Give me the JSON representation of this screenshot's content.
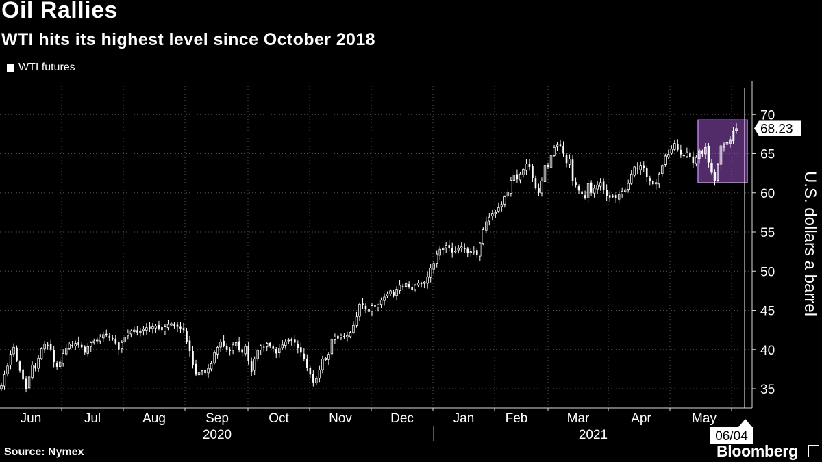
{
  "header": {
    "title": "Oil Rallies",
    "subtitle": "WTI hits its highest level since October 2018"
  },
  "footer": {
    "source": "Source: Nymex",
    "brand": "Bloomberg"
  },
  "chart_data": {
    "type": "candlestick",
    "legend": [
      "WTI futures"
    ],
    "legend_position": "top-left",
    "ylabel": "U.S. dollars a barrel",
    "ylim": [
      31,
      71
    ],
    "yticks": [
      35,
      40,
      45,
      50,
      55,
      60,
      65,
      70
    ],
    "grid": true,
    "x_month_labels": [
      "Jun",
      "Jul",
      "Aug",
      "Sep",
      "Oct",
      "Nov",
      "Dec",
      "Jan",
      "Feb",
      "Mar",
      "Apr",
      "May"
    ],
    "x_year_labels": [
      "2020",
      "2021"
    ],
    "last_value_label": "68.23",
    "last_date_label": "06/04",
    "highlight_range": {
      "ymin": 61.3,
      "ymax": 69.3
    },
    "closes": [
      35.4,
      36.8,
      37.9,
      39.4,
      40.3,
      38.6,
      37.3,
      36.2,
      35.0,
      36.5,
      38.0,
      37.6,
      38.9,
      40.1,
      40.7,
      40.6,
      40.0,
      38.4,
      37.8,
      38.4,
      39.5,
      40.2,
      40.7,
      40.5,
      40.8,
      40.6,
      40.3,
      39.6,
      40.4,
      40.9,
      41.1,
      41.2,
      41.6,
      41.9,
      41.8,
      41.5,
      41.3,
      40.8,
      40.0,
      40.9,
      41.6,
      42.1,
      42.4,
      42.5,
      42.2,
      42.3,
      42.6,
      42.8,
      42.7,
      42.9,
      43.0,
      42.7,
      42.5,
      42.9,
      43.2,
      43.3,
      43.0,
      42.9,
      42.7,
      42.5,
      41.0,
      39.8,
      38.0,
      36.8,
      37.1,
      37.3,
      37.0,
      37.6,
      38.2,
      39.6,
      40.3,
      41.0,
      40.5,
      40.0,
      39.8,
      40.6,
      40.9,
      39.9,
      39.6,
      40.4,
      38.5,
      37.2,
      38.8,
      39.9,
      40.5,
      40.3,
      40.8,
      40.5,
      40.1,
      39.5,
      40.2,
      40.6,
      41.0,
      41.2,
      41.1,
      40.9,
      40.2,
      39.6,
      38.8,
      37.7,
      36.8,
      35.8,
      36.3,
      37.4,
      38.8,
      38.9,
      39.4,
      41.3,
      41.6,
      41.4,
      41.8,
      41.6,
      41.8,
      42.2,
      43.1,
      44.2,
      45.8,
      45.7,
      45.1,
      44.8,
      45.6,
      45.5,
      45.7,
      46.3,
      46.7,
      47.1,
      47.5,
      46.9,
      47.7,
      48.2,
      48.1,
      48.4,
      48.0,
      47.6,
      48.2,
      48.5,
      48.4,
      48.6,
      49.3,
      50.4,
      51.0,
      52.2,
      52.8,
      52.9,
      53.3,
      53.0,
      52.4,
      52.6,
      52.9,
      53.1,
      52.8,
      52.3,
      52.5,
      52.6,
      52.1,
      53.6,
      55.3,
      56.3,
      56.9,
      57.4,
      57.5,
      58.1,
      58.5,
      59.5,
      60.1,
      61.6,
      62.3,
      61.7,
      62.4,
      63.0,
      63.7,
      63.3,
      61.9,
      60.6,
      60.0,
      61.5,
      63.5,
      63.3,
      64.8,
      65.8,
      66.1,
      66.0,
      65.0,
      63.8,
      64.3,
      61.5,
      61.0,
      60.3,
      59.8,
      59.3,
      61.2,
      60.0,
      60.6,
      61.0,
      61.3,
      60.4,
      59.6,
      59.4,
      59.6,
      59.3,
      59.8,
      60.2,
      60.4,
      61.2,
      62.4,
      63.3,
      63.1,
      63.5,
      63.2,
      62.0,
      61.5,
      61.1,
      61.3,
      62.4,
      63.5,
      64.7,
      64.9,
      65.6,
      66.3,
      65.5,
      64.9,
      64.8,
      65.2,
      64.6,
      63.8,
      64.5,
      65.4,
      65.0,
      65.8,
      63.9,
      62.6,
      61.6,
      63.6,
      66.0,
      66.2,
      66.4,
      66.8,
      67.8,
      68.2
    ]
  }
}
